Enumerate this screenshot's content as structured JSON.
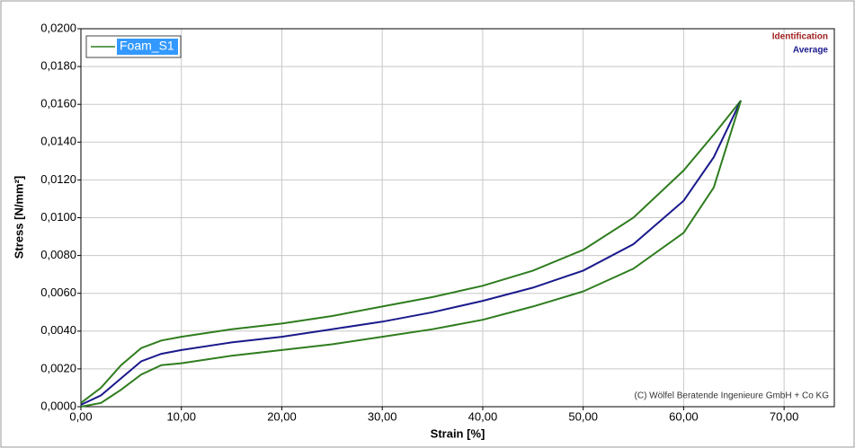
{
  "chart_data": {
    "type": "line",
    "x_label": "Strain [%]",
    "y_label": "Stress [N/mm²]",
    "x": [
      0,
      2,
      4,
      6,
      8,
      10,
      15,
      20,
      25,
      30,
      35,
      40,
      45,
      50,
      55,
      60,
      63,
      65.7
    ],
    "series": [
      {
        "name": "Foam_S1",
        "color": "#2e7d1e",
        "values": [
          0.0002,
          0.001,
          0.0022,
          0.0031,
          0.0035,
          0.0037,
          0.0041,
          0.0044,
          0.0048,
          0.0053,
          0.0058,
          0.0064,
          0.0072,
          0.0083,
          0.01,
          0.0125,
          0.0144,
          0.0162
        ]
      },
      {
        "name": "Average",
        "color": "#1a1a8c",
        "values": [
          0.0001,
          0.0006,
          0.0015,
          0.0024,
          0.0028,
          0.003,
          0.0034,
          0.0037,
          0.0041,
          0.0045,
          0.005,
          0.0056,
          0.0063,
          0.0072,
          0.0086,
          0.0109,
          0.0132,
          0.0162
        ]
      },
      {
        "color": "#2e7d1e",
        "values": [
          0.0,
          0.0002,
          0.0009,
          0.0017,
          0.0022,
          0.0023,
          0.0027,
          0.003,
          0.0033,
          0.0037,
          0.0041,
          0.0046,
          0.0053,
          0.0061,
          0.0073,
          0.0092,
          0.0116,
          0.0162
        ]
      }
    ],
    "xlim": [
      0,
      75
    ],
    "ylim": [
      0,
      0.02
    ],
    "xticks": [
      {
        "value": 0,
        "label": "0,00"
      },
      {
        "value": 10,
        "label": "10,00"
      },
      {
        "value": 20,
        "label": "20,00"
      },
      {
        "value": 30,
        "label": "30,00"
      },
      {
        "value": 40,
        "label": "40,00"
      },
      {
        "value": 50,
        "label": "50,00"
      },
      {
        "value": 60,
        "label": "60,00"
      },
      {
        "value": 70,
        "label": "70,00"
      }
    ],
    "yticks": [
      {
        "value": 0,
        "label": "0,0000"
      },
      {
        "value": 0.002,
        "label": "0,0020"
      },
      {
        "value": 0.004,
        "label": "0,0040"
      },
      {
        "value": 0.006,
        "label": "0,0060"
      },
      {
        "value": 0.008,
        "label": "0,0080"
      },
      {
        "value": 0.01,
        "label": "0,0100"
      },
      {
        "value": 0.012,
        "label": "0,0120"
      },
      {
        "value": 0.014,
        "label": "0,0140"
      },
      {
        "value": 0.016,
        "label": "0,0160"
      },
      {
        "value": 0.018,
        "label": "0,0180"
      },
      {
        "value": 0.02,
        "label": "0,0200"
      }
    ],
    "grid": true,
    "legend": "upper left",
    "annotations": [
      {
        "text": "Identification",
        "color": "#a02020"
      },
      {
        "text": "(C) Wölfel Beratende Ingenieure GmbH + Co KG",
        "color": "#333333"
      }
    ]
  }
}
